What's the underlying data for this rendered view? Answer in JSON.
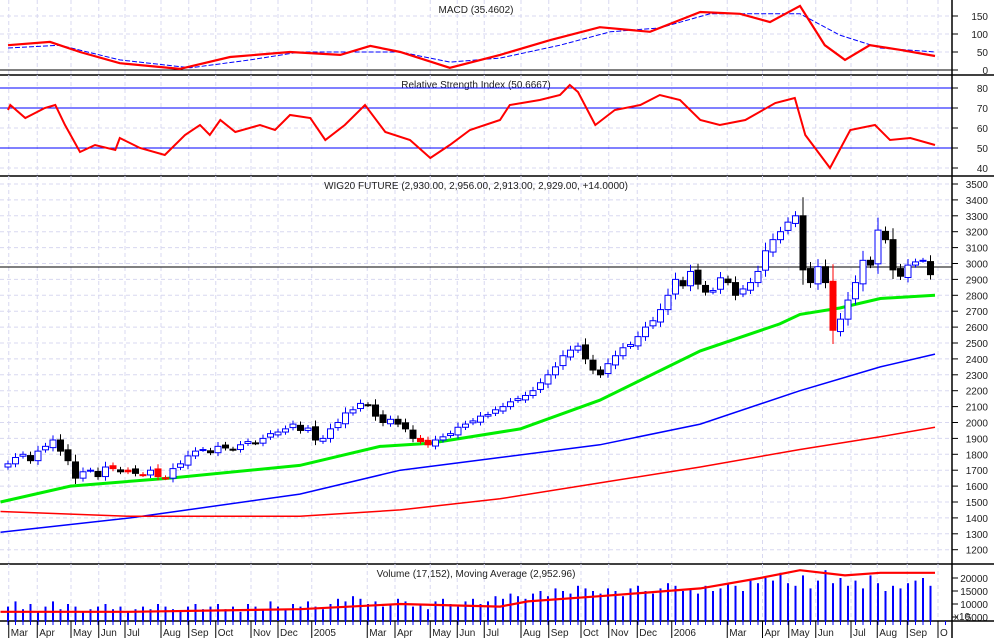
{
  "chart_data": [
    {
      "type": "line",
      "title": "MACD (35.4602)",
      "yticks": [
        0,
        50,
        100,
        150
      ],
      "ylim": [
        -10,
        195
      ],
      "series": [
        {
          "name": "MACD",
          "color": "#ff0000",
          "points": [
            [
              0,
              69
            ],
            [
              5.6,
              78
            ],
            [
              9.6,
              50
            ],
            [
              14.9,
              19
            ],
            [
              22.9,
              3
            ],
            [
              29.6,
              36
            ],
            [
              37.6,
              50
            ],
            [
              44.3,
              42
            ],
            [
              48.3,
              67
            ],
            [
              52.3,
              50
            ],
            [
              58.9,
              6
            ],
            [
              65.6,
              42
            ],
            [
              72.3,
              83
            ],
            [
              78.9,
              119
            ],
            [
              85.6,
              106
            ],
            [
              92.3,
              161
            ],
            [
              97.6,
              156
            ],
            [
              101.6,
              133
            ],
            [
              105.6,
              178
            ],
            [
              108.9,
              69
            ],
            [
              111.6,
              28
            ],
            [
              114.9,
              69
            ],
            [
              118.9,
              56
            ],
            [
              123.6,
              39
            ]
          ]
        },
        {
          "name": "Signal",
          "color": "#0000ff",
          "points": [
            [
              0,
              61
            ],
            [
              6.9,
              69
            ],
            [
              14.9,
              28
            ],
            [
              24.3,
              6
            ],
            [
              32.3,
              28
            ],
            [
              38.9,
              50
            ],
            [
              45.6,
              50
            ],
            [
              52.3,
              50
            ],
            [
              58.9,
              22
            ],
            [
              65.6,
              33
            ],
            [
              73.6,
              69
            ],
            [
              80.3,
              106
            ],
            [
              86.9,
              117
            ],
            [
              93.6,
              156
            ],
            [
              100.3,
              156
            ],
            [
              105.6,
              156
            ],
            [
              110.9,
              97
            ],
            [
              116.3,
              61
            ],
            [
              123.6,
              50
            ]
          ]
        }
      ]
    },
    {
      "type": "line",
      "title": "Relative Strength Index (50.6667)",
      "yticks": [
        40,
        50,
        60,
        70,
        80
      ],
      "reference_lines": [
        80,
        70,
        50
      ],
      "series": [
        {
          "name": "RSI",
          "color": "#ff0000",
          "points": [
            [
              0,
              69
            ],
            [
              0.3,
              71.5
            ],
            [
              2.3,
              65
            ],
            [
              4.9,
              70
            ],
            [
              6.3,
              71.5
            ],
            [
              7.6,
              61.5
            ],
            [
              9.6,
              48
            ],
            [
              11.6,
              51.5
            ],
            [
              14.3,
              49
            ],
            [
              14.9,
              55
            ],
            [
              17.6,
              50
            ],
            [
              20.9,
              46.5
            ],
            [
              23.6,
              56.5
            ],
            [
              25.6,
              61.5
            ],
            [
              26.9,
              56.5
            ],
            [
              28.3,
              64
            ],
            [
              30.3,
              58
            ],
            [
              33.6,
              61.5
            ],
            [
              35.6,
              59
            ],
            [
              37.6,
              66.5
            ],
            [
              40.3,
              65
            ],
            [
              42.3,
              54
            ],
            [
              44.9,
              61.5
            ],
            [
              47.6,
              71.5
            ],
            [
              50.3,
              58
            ],
            [
              53.6,
              54
            ],
            [
              56.3,
              45
            ],
            [
              58.9,
              51.5
            ],
            [
              61.6,
              59
            ],
            [
              65.6,
              64
            ],
            [
              66.9,
              71.5
            ],
            [
              70.9,
              74
            ],
            [
              73.6,
              76.5
            ],
            [
              74.9,
              81.5
            ],
            [
              76,
              78
            ],
            [
              78.3,
              61.5
            ],
            [
              80.9,
              69
            ],
            [
              84.3,
              71.5
            ],
            [
              86.9,
              76.5
            ],
            [
              89.6,
              74
            ],
            [
              92.3,
              64
            ],
            [
              94.9,
              61.5
            ],
            [
              98.3,
              64
            ],
            [
              102.3,
              72.5
            ],
            [
              104.9,
              75
            ],
            [
              106.3,
              56.5
            ],
            [
              109.6,
              40
            ],
            [
              112.3,
              59
            ],
            [
              115.6,
              61.5
            ],
            [
              117.6,
              54
            ],
            [
              120.3,
              55
            ],
            [
              123.6,
              51.5
            ]
          ]
        }
      ]
    },
    {
      "type": "candlestick",
      "title": "WIG20 FUTURE (2,930.00, 2,956.00, 2,913.00, 2,929.00, +14.0000)",
      "yticks": [
        1200,
        1300,
        1400,
        1500,
        1600,
        1700,
        1800,
        1900,
        2000,
        2100,
        2200,
        2300,
        2400,
        2500,
        2600,
        2700,
        2800,
        2900,
        3000,
        3100,
        3200,
        3300,
        3400,
        3500
      ],
      "reference_line": 2978,
      "colors": {
        "up": "#0000ff",
        "down": "#000000",
        "highlight": "#ff0000"
      },
      "highlight_indices": [
        14,
        16,
        18,
        20,
        21,
        55,
        56,
        110
      ],
      "closes": [
        1740,
        1780,
        1800,
        1760,
        1820,
        1850,
        1890,
        1820,
        1760,
        1650,
        1690,
        1700,
        1660,
        1720,
        1710,
        1690,
        1700,
        1680,
        1670,
        1700,
        1660,
        1650,
        1710,
        1740,
        1790,
        1820,
        1830,
        1810,
        1850,
        1840,
        1830,
        1860,
        1880,
        1870,
        1900,
        1930,
        1940,
        1960,
        1990,
        1950,
        1965,
        1890,
        1900,
        1960,
        2000,
        2060,
        2080,
        2120,
        2110,
        2040,
        2000,
        2020,
        1990,
        1960,
        1900,
        1880,
        1860,
        1890,
        1910,
        1930,
        1970,
        1990,
        2010,
        2040,
        2050,
        2080,
        2100,
        2130,
        2150,
        2170,
        2200,
        2250,
        2300,
        2350,
        2420,
        2455,
        2480,
        2400,
        2330,
        2300,
        2370,
        2420,
        2470,
        2490,
        2540,
        2600,
        2640,
        2710,
        2800,
        2900,
        2860,
        2950,
        2870,
        2820,
        2830,
        2910,
        2880,
        2800,
        2840,
        2880,
        2950,
        3080,
        3150,
        3200,
        3260,
        3300,
        2960,
        2880,
        2980,
        2880,
        2580,
        2650,
        2770,
        2880,
        3020,
        2990,
        3210,
        3150,
        2960,
        2920,
        2990,
        3010,
        3020,
        2930
      ],
      "moving_averages": [
        {
          "name": "MA green",
          "color": "#00ee00",
          "points": [
            [
              -1,
              1500
            ],
            [
              8.3,
              1600
            ],
            [
              21.6,
              1650
            ],
            [
              38.9,
              1730
            ],
            [
              49.6,
              1850
            ],
            [
              56.3,
              1870
            ],
            [
              68.3,
              1960
            ],
            [
              78.9,
              2140
            ],
            [
              92.3,
              2450
            ],
            [
              102.9,
              2620
            ],
            [
              105.6,
              2680
            ],
            [
              110.9,
              2720
            ],
            [
              116.3,
              2780
            ],
            [
              123.6,
              2800
            ]
          ]
        },
        {
          "name": "MA blue",
          "color": "#0000ff",
          "points": [
            [
              -1,
              1310
            ],
            [
              16.3,
              1400
            ],
            [
              38.9,
              1550
            ],
            [
              52.3,
              1700
            ],
            [
              65.6,
              1780
            ],
            [
              78.9,
              1860
            ],
            [
              92.3,
              1990
            ],
            [
              105.6,
              2200
            ],
            [
              116.3,
              2350
            ],
            [
              123.6,
              2430
            ]
          ]
        },
        {
          "name": "MA red",
          "color": "#ff0000",
          "points": [
            [
              -1,
              1440
            ],
            [
              16.3,
              1410
            ],
            [
              38.9,
              1410
            ],
            [
              52.3,
              1450
            ],
            [
              65.6,
              1520
            ],
            [
              78.9,
              1620
            ],
            [
              92.3,
              1720
            ],
            [
              105.6,
              1830
            ],
            [
              116.3,
              1910
            ],
            [
              123.6,
              1970
            ]
          ]
        }
      ]
    },
    {
      "type": "bar",
      "title": "Volume (17,152), Moving Average (2,952.96)",
      "yticks": [
        5000,
        10000,
        15000,
        20000
      ],
      "multiplier_label": "x10",
      "values": [
        9,
        11,
        8,
        10,
        7,
        9,
        11,
        8,
        10,
        9,
        7,
        8,
        9,
        10,
        8,
        9,
        7,
        8,
        9,
        8,
        10,
        9,
        8,
        7,
        9,
        10,
        8,
        9,
        10,
        8,
        9,
        7,
        10,
        9,
        8,
        11,
        9,
        8,
        10,
        9,
        11,
        9,
        8,
        10,
        12,
        11,
        13,
        12,
        10,
        11,
        9,
        10,
        12,
        11,
        9,
        10,
        8,
        11,
        12,
        10,
        9,
        11,
        12,
        10,
        11,
        13,
        12,
        14,
        13,
        12,
        14,
        15,
        13,
        16,
        15,
        14,
        17,
        16,
        15,
        14,
        16,
        15,
        13,
        16,
        17,
        15,
        14,
        16,
        18,
        17,
        15,
        16,
        14,
        17,
        15,
        16,
        18,
        17,
        15,
        19,
        18,
        20,
        19,
        22,
        18,
        17,
        21,
        16,
        19,
        23,
        18,
        20,
        17,
        19,
        16,
        21,
        18,
        15,
        17,
        16,
        18,
        19,
        20,
        17
      ],
      "value_unit": "thousands",
      "moving_average": {
        "color": "#ff0000",
        "points": [
          [
            -1,
            7
          ],
          [
            16.3,
            7
          ],
          [
            38.9,
            8
          ],
          [
            52.3,
            10
          ],
          [
            65.6,
            9
          ],
          [
            69.3,
            11
          ],
          [
            78.9,
            13
          ],
          [
            92.3,
            16
          ],
          [
            100.3,
            20
          ],
          [
            105.6,
            23
          ],
          [
            111.6,
            21
          ],
          [
            116.3,
            22
          ],
          [
            123.6,
            22
          ]
        ]
      }
    }
  ],
  "x_axis": {
    "labels": [
      {
        "label": "Mar",
        "i": 0.5
      },
      {
        "label": "Apr",
        "i": 4.3
      },
      {
        "label": "May",
        "i": 8.8
      },
      {
        "label": "Jun",
        "i": 12.5
      },
      {
        "label": "Jul",
        "i": 16
      },
      {
        "label": "Aug",
        "i": 20.8
      },
      {
        "label": "Sep",
        "i": 24.5
      },
      {
        "label": "Oct",
        "i": 28.1
      },
      {
        "label": "Nov",
        "i": 32.8
      },
      {
        "label": "Dec",
        "i": 36.4
      },
      {
        "label": "2005",
        "i": 40.9
      },
      {
        "label": "Mar",
        "i": 48.3
      },
      {
        "label": "Apr",
        "i": 52
      },
      {
        "label": "May",
        "i": 56.7
      },
      {
        "label": "Jun",
        "i": 60.3
      },
      {
        "label": "Jul",
        "i": 63.9
      },
      {
        "label": "Aug",
        "i": 68.8
      },
      {
        "label": "Sep",
        "i": 72.5
      },
      {
        "label": "Oct",
        "i": 76.8
      },
      {
        "label": "Nov",
        "i": 80.5
      },
      {
        "label": "Dec",
        "i": 84.3
      },
      {
        "label": "2006",
        "i": 88.9
      },
      {
        "label": "Mar",
        "i": 96.3
      },
      {
        "label": "Apr",
        "i": 101
      },
      {
        "label": "May",
        "i": 104.5
      },
      {
        "label": "Jun",
        "i": 108.1
      },
      {
        "label": "Jul",
        "i": 112.8
      },
      {
        "label": "Aug",
        "i": 116.3
      },
      {
        "label": "Sep",
        "i": 120.3
      },
      {
        "label": "O",
        "i": 124.4
      }
    ]
  }
}
